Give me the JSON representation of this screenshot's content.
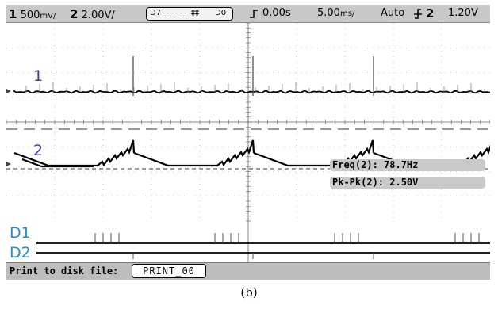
{
  "status": {
    "ch1_num": "1",
    "ch1_scale": "500",
    "ch1_unit": "mV/",
    "ch2_num": "2",
    "ch2_scale": "2.00V/",
    "digital_hi": "D7",
    "digital_sep": "‡‡",
    "digital_lo": "D0",
    "time_offset": "0.00s",
    "timebase": "5.00",
    "timebase_unit": "ms/",
    "trigger_mode": "Auto",
    "trigger_source": "2",
    "trigger_level": "1.20V"
  },
  "channels": {
    "ch1_label": "1",
    "ch2_label": "2",
    "d1_label": "D1",
    "d2_label": "D2"
  },
  "measurements": {
    "freq": "Freq(2): 78.7Hz",
    "pkpk": "Pk-Pk(2): 2.50V"
  },
  "bottom": {
    "print_label": "Print to disk file:",
    "file_name": "PRINT_00"
  },
  "caption": "(b)",
  "colors": {
    "ch_label": "#3a3aa0",
    "digital_label": "#1f8fd6",
    "status_bar": "#c8c8c8",
    "trace": "#000000"
  },
  "icons": {
    "trigger_edge": "rising-edge-icon",
    "trigger_slope": "trigger-slope-icon",
    "ground_marker": "ground-marker-icon"
  }
}
